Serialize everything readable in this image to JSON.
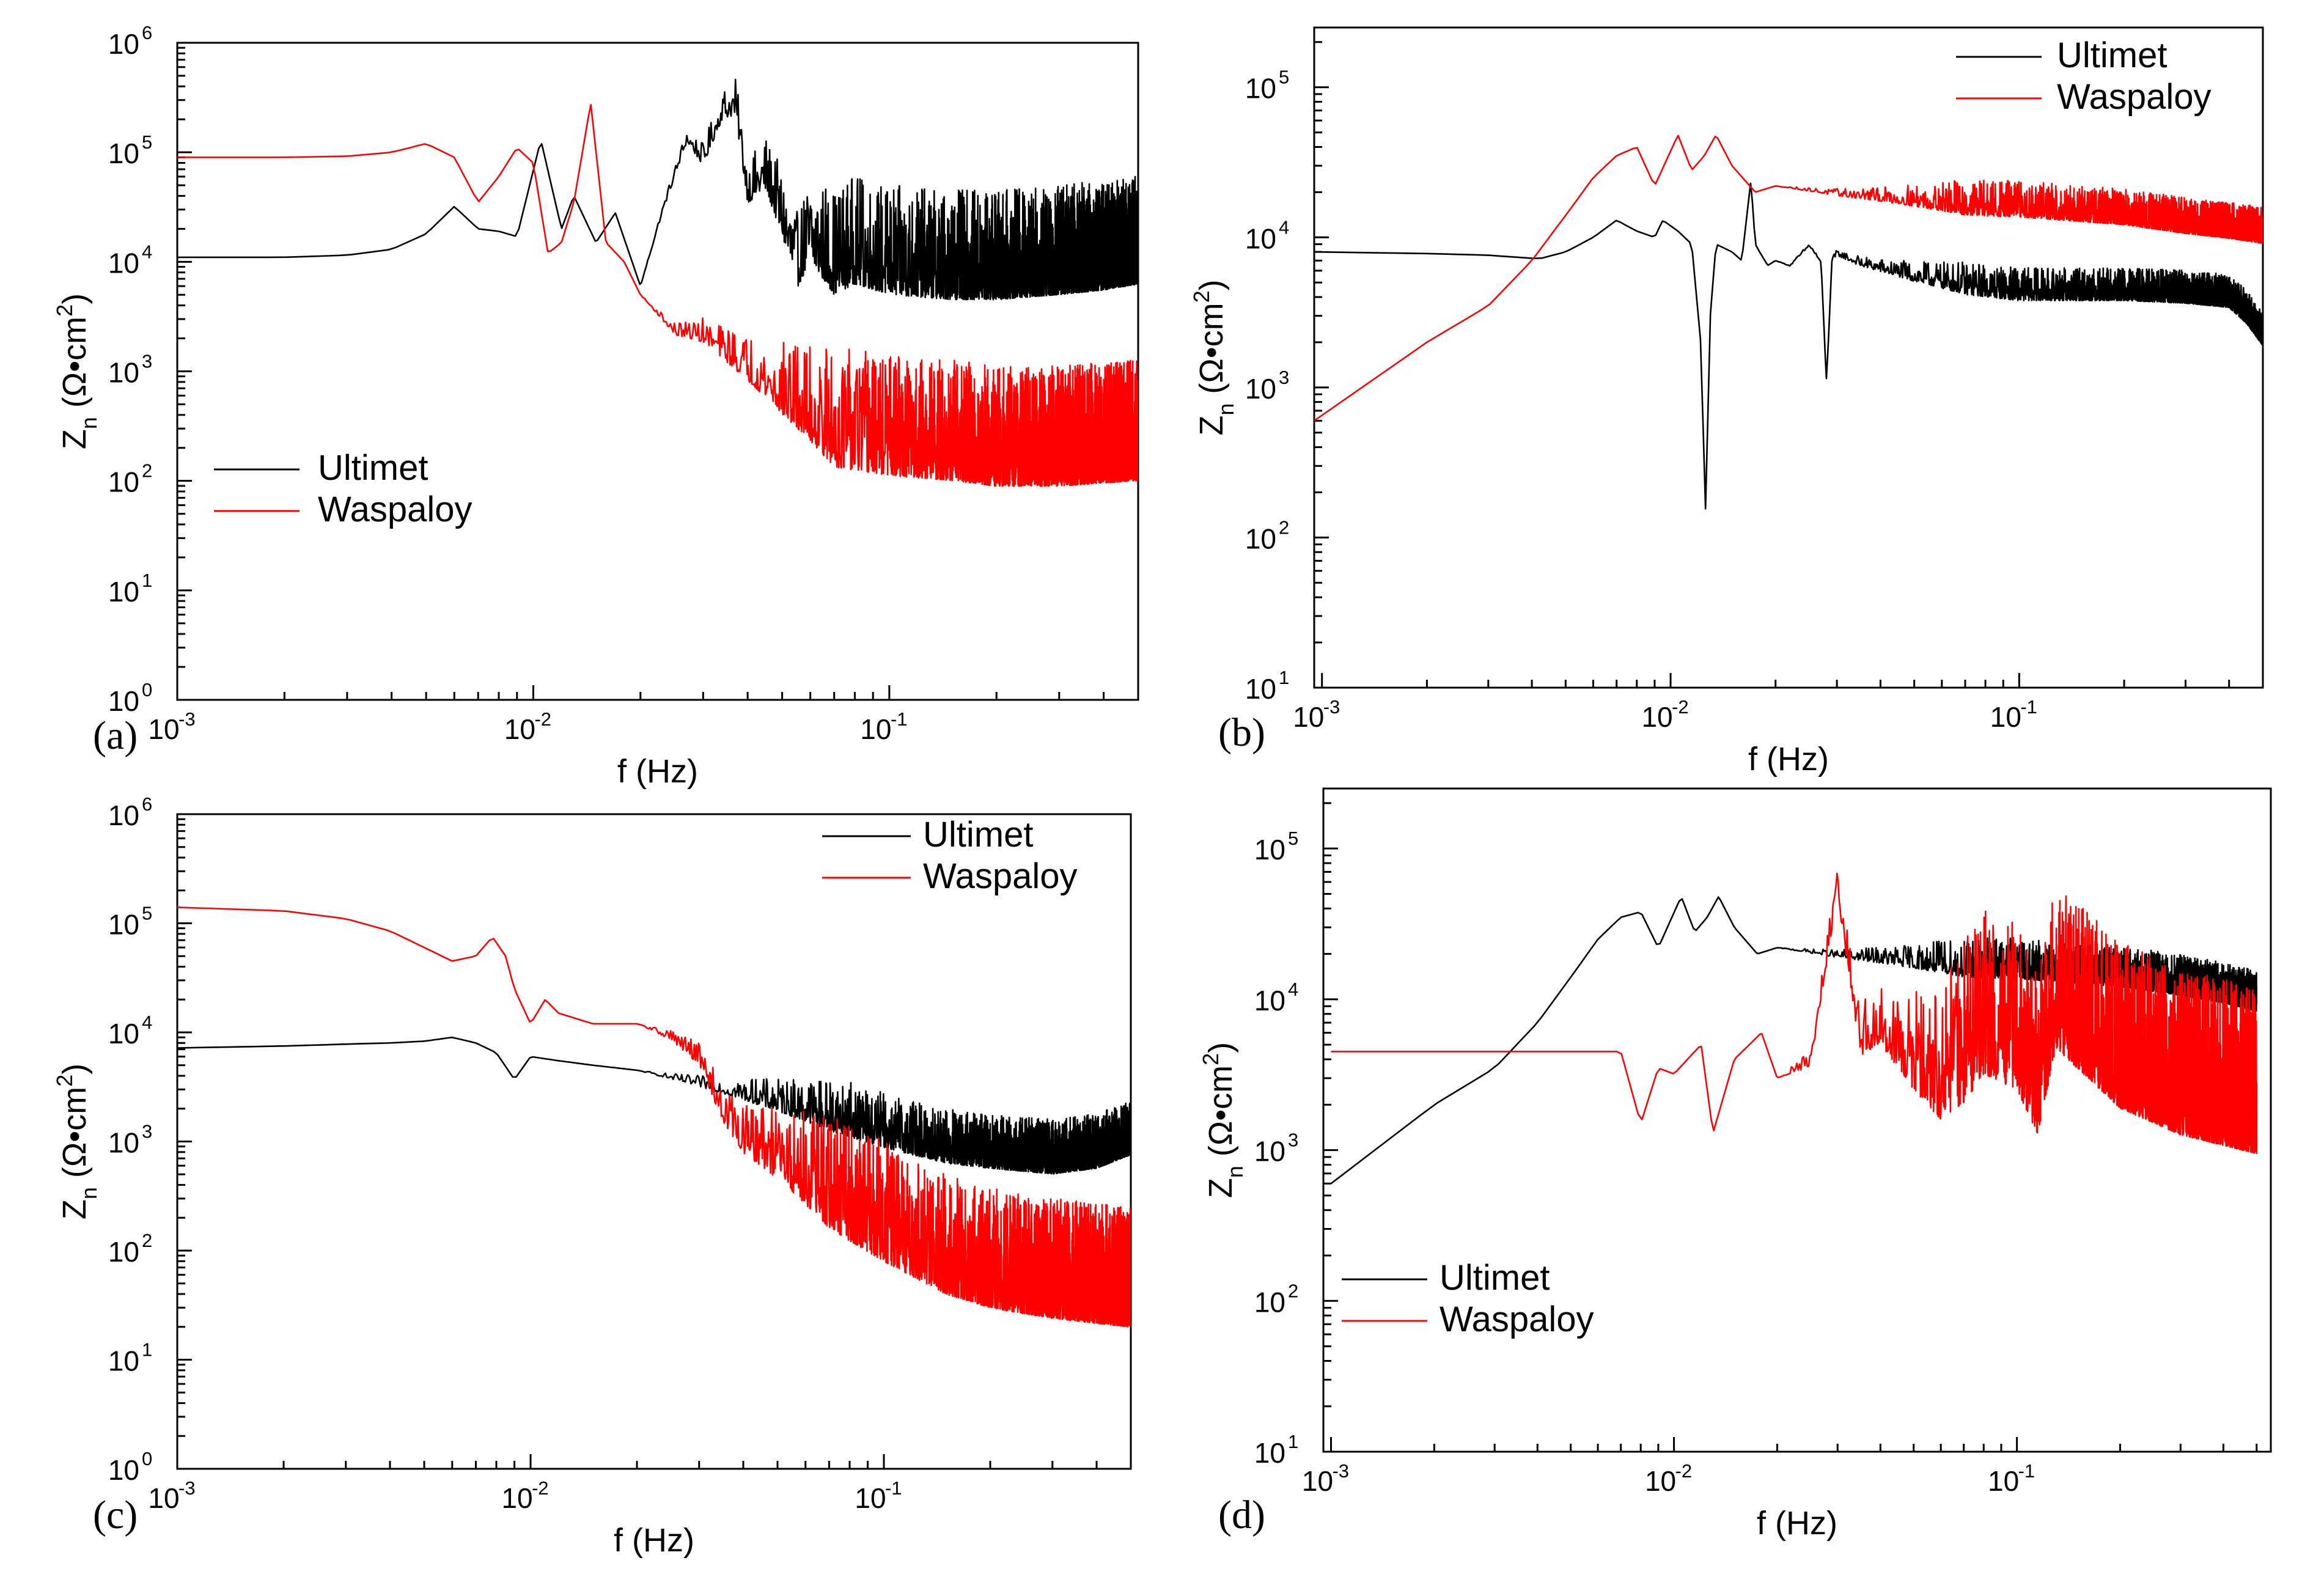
{
  "figure": {
    "panel_labels": [
      "(a)",
      "(b)",
      "(c)",
      "(d)"
    ],
    "tick_base": "10",
    "x_tick_exponents": [
      "-3",
      "-2",
      "-1"
    ],
    "xlabel": "f (Hz)",
    "ylabel": {
      "main": "Z",
      "sub": "n",
      "unit_open": " (Ω•cm",
      "unit_sup": "2",
      "unit_close": ")"
    },
    "legend": [
      "Ultimet",
      "Waspaloy"
    ],
    "colors": {
      "ultimet": "#000000",
      "waspaloy": "#ff0000",
      "axis": "#000000"
    }
  },
  "chart_data": [
    {
      "panel": "(a)",
      "type": "line",
      "xscale": "log",
      "yscale": "log",
      "title": "",
      "xlabel": "f (Hz)",
      "ylabel": "Zn (Ω•cm2)",
      "xlim": [
        0.001,
        0.5
      ],
      "ylim": [
        1,
        1000000
      ],
      "y_tick_exponents": [
        "0",
        "1",
        "2",
        "3",
        "4",
        "5",
        "6"
      ],
      "legend_position": "center-left",
      "series": [
        {
          "name": "Ultimet",
          "color": "#000000",
          "noise": [
            -0.6,
            0.4
          ],
          "x": [
            0.001,
            0.002,
            0.003,
            0.004,
            0.005,
            0.006,
            0.007,
            0.008,
            0.009,
            0.0105,
            0.012,
            0.013,
            0.015,
            0.017,
            0.02,
            0.023,
            0.027,
            0.03,
            0.034,
            0.037,
            0.04,
            0.045,
            0.05,
            0.055,
            0.06,
            0.07,
            0.08,
            0.1,
            0.15,
            0.2,
            0.3,
            0.4,
            0.5
          ],
          "y": [
            11000,
            11000,
            11500,
            13000,
            18000,
            32000,
            20000,
            19000,
            17000,
            130000,
            20000,
            40000,
            15000,
            28000,
            6000,
            30000,
            150000,
            100000,
            300000,
            350000,
            60000,
            90000,
            40000,
            15000,
            30000,
            20000,
            25000,
            20000,
            18000,
            18000,
            20000,
            22000,
            25000
          ]
        },
        {
          "name": "Waspaloy",
          "color": "#ff0000",
          "noise": [
            -0.65,
            0.45
          ],
          "x": [
            0.001,
            0.002,
            0.003,
            0.004,
            0.005,
            0.006,
            0.007,
            0.008,
            0.009,
            0.01,
            0.011,
            0.012,
            0.013,
            0.0145,
            0.016,
            0.018,
            0.02,
            0.025,
            0.03,
            0.04,
            0.05,
            0.07,
            0.1,
            0.15,
            0.2,
            0.3,
            0.5
          ],
          "y": [
            90000,
            90000,
            92000,
            100000,
            120000,
            90000,
            35000,
            60000,
            110000,
            80000,
            12000,
            15000,
            35000,
            280000,
            15000,
            10000,
            5000,
            2500,
            2500,
            1500,
            1000,
            600,
            500,
            450,
            400,
            400,
            450
          ]
        }
      ]
    },
    {
      "panel": "(b)",
      "type": "line",
      "xscale": "log",
      "yscale": "log",
      "title": "",
      "xlabel": "f (Hz)",
      "ylabel": "Zn (Ω•cm2)",
      "xlim": [
        0.00095,
        0.5
      ],
      "ylim": [
        10,
        250000
      ],
      "y_tick_exponents": [
        "1",
        "2",
        "3",
        "4",
        "5"
      ],
      "legend_position": "top-right",
      "series": [
        {
          "name": "Ultimet",
          "color": "#000000",
          "noise": [
            -0.12,
            0.1
          ],
          "x": [
            0.00095,
            0.002,
            0.003,
            0.0042,
            0.005,
            0.006,
            0.007,
            0.008,
            0.009,
            0.0095,
            0.0105,
            0.0115,
            0.0122,
            0.0126,
            0.013,
            0.0135,
            0.015,
            0.016,
            0.017,
            0.0175,
            0.018,
            0.019,
            0.02,
            0.022,
            0.025,
            0.027,
            0.028,
            0.029,
            0.03,
            0.035,
            0.05,
            0.1,
            0.2,
            0.3,
            0.4,
            0.45,
            0.5
          ],
          "y": [
            8000,
            7800,
            7600,
            7200,
            8000,
            10000,
            13000,
            11000,
            10000,
            13000,
            11000,
            9000,
            2000,
            150,
            3000,
            9000,
            8000,
            7000,
            24000,
            9000,
            8000,
            6500,
            7000,
            6500,
            9000,
            7000,
            1100,
            7000,
            8000,
            7000,
            6000,
            5000,
            5000,
            4800,
            4500,
            3500,
            2500
          ]
        },
        {
          "name": "Waspaloy",
          "color": "#ff0000",
          "noise": [
            -0.12,
            0.12
          ],
          "x": [
            0.00095,
            0.002,
            0.003,
            0.004,
            0.005,
            0.006,
            0.007,
            0.008,
            0.009,
            0.0105,
            0.0115,
            0.0125,
            0.0135,
            0.015,
            0.0175,
            0.02,
            0.03,
            0.05,
            0.1,
            0.2,
            0.3,
            0.4,
            0.5
          ],
          "y": [
            600,
            2000,
            3500,
            7000,
            14000,
            25000,
            35000,
            40000,
            22000,
            48000,
            28000,
            35000,
            48000,
            30000,
            20000,
            22000,
            20000,
            19000,
            18000,
            16000,
            14000,
            13000,
            12000
          ]
        }
      ]
    },
    {
      "panel": "(c)",
      "type": "line",
      "xscale": "log",
      "yscale": "log",
      "title": "",
      "xlabel": "f (Hz)",
      "ylabel": "Zn (Ω•cm2)",
      "xlim": [
        0.001,
        0.5
      ],
      "ylim": [
        1,
        1000000
      ],
      "y_tick_exponents": [
        "0",
        "1",
        "2",
        "3",
        "4",
        "5",
        "6"
      ],
      "legend_position": "top-right",
      "series": [
        {
          "name": "Ultimet",
          "color": "#000000",
          "noise": [
            -0.2,
            0.3
          ],
          "x": [
            0.001,
            0.002,
            0.003,
            0.004,
            0.005,
            0.006,
            0.007,
            0.008,
            0.009,
            0.01,
            0.012,
            0.015,
            0.02,
            0.03,
            0.05,
            0.07,
            0.1,
            0.15,
            0.2,
            0.3,
            0.4,
            0.5
          ],
          "y": [
            7200,
            7500,
            7800,
            8000,
            8300,
            9000,
            8000,
            6500,
            3700,
            6000,
            5500,
            5000,
            4500,
            3500,
            2500,
            2000,
            1400,
            1000,
            900,
            800,
            900,
            1200
          ]
        },
        {
          "name": "Waspaloy",
          "color": "#ff0000",
          "noise": [
            -0.7,
            0.4
          ],
          "x": [
            0.001,
            0.002,
            0.003,
            0.004,
            0.005,
            0.006,
            0.007,
            0.0078,
            0.0085,
            0.009,
            0.01,
            0.011,
            0.012,
            0.015,
            0.02,
            0.025,
            0.03,
            0.035,
            0.04,
            0.05,
            0.07,
            0.1,
            0.15,
            0.2,
            0.3,
            0.5
          ],
          "y": [
            140000,
            130000,
            110000,
            85000,
            60000,
            45000,
            50000,
            75000,
            50000,
            25000,
            12000,
            20000,
            15000,
            12000,
            12000,
            10000,
            7000,
            2500,
            1500,
            1200,
            800,
            400,
            200,
            150,
            120,
            100
          ]
        }
      ]
    },
    {
      "panel": "(d)",
      "type": "line",
      "xscale": "log",
      "yscale": "log",
      "title": "",
      "xlabel": "f (Hz)",
      "ylabel": "Zn (Ω•cm2)",
      "xlim": [
        0.00095,
        0.55
      ],
      "ylim": [
        10,
        250000
      ],
      "y_tick_exponents": [
        "1",
        "2",
        "3",
        "4",
        "5"
      ],
      "legend_position": "bottom-left",
      "series": [
        {
          "name": "Ultimet",
          "color": "#000000",
          "noise": [
            -0.12,
            0.15
          ],
          "x": [
            0.001,
            0.002,
            0.003,
            0.004,
            0.005,
            0.006,
            0.007,
            0.008,
            0.009,
            0.0105,
            0.0115,
            0.0125,
            0.0135,
            0.015,
            0.0175,
            0.02,
            0.03,
            0.05,
            0.1,
            0.2,
            0.3,
            0.4,
            0.5
          ],
          "y": [
            600,
            2000,
            3500,
            7000,
            14000,
            25000,
            35000,
            38000,
            22000,
            48000,
            28000,
            35000,
            48000,
            30000,
            20000,
            22000,
            20000,
            19000,
            18000,
            16000,
            14000,
            12500,
            11000
          ]
        },
        {
          "name": "Waspaloy",
          "color": "#ff0000",
          "noise": [
            -0.5,
            0.6
          ],
          "x": [
            0.001,
            0.002,
            0.003,
            0.004,
            0.005,
            0.006,
            0.007,
            0.008,
            0.009,
            0.01,
            0.012,
            0.013,
            0.015,
            0.018,
            0.02,
            0.025,
            0.03,
            0.035,
            0.04,
            0.05,
            0.06,
            0.08,
            0.1,
            0.115,
            0.13,
            0.2,
            0.3,
            0.5
          ],
          "y": [
            4500,
            4500,
            4500,
            4500,
            4500,
            4500,
            4500,
            1500,
            3500,
            3200,
            5000,
            1300,
            4000,
            6000,
            3000,
            4000,
            60000,
            6000,
            8000,
            5000,
            4000,
            10000,
            8000,
            4000,
            15000,
            6000,
            4000,
            3000
          ]
        }
      ]
    }
  ]
}
